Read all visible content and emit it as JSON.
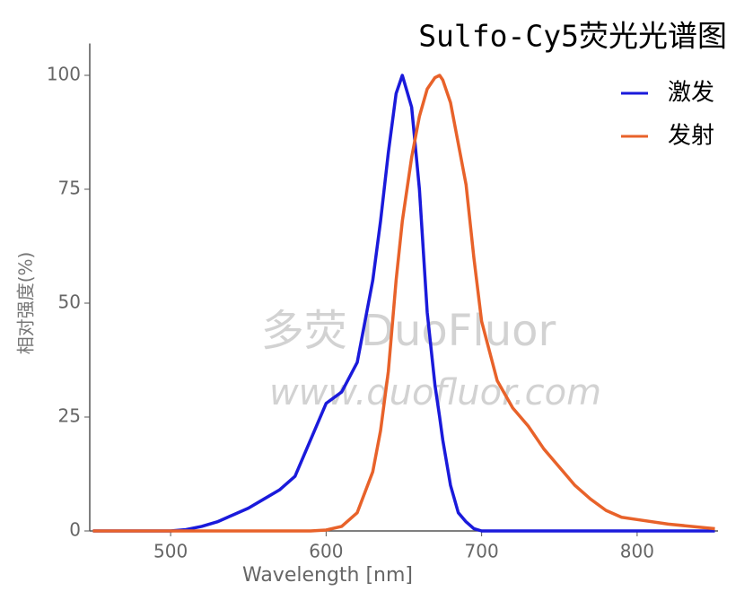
{
  "chart_data": {
    "type": "line",
    "title": "Sulfo-Cy5荧光光谱图",
    "x_label": "Wavelength [nm]",
    "y_label": "相对强度(%)",
    "watermark": [
      "多荧 DuoFluor",
      "www.duofluor.com"
    ],
    "x": [
      450,
      500,
      510,
      520,
      530,
      540,
      550,
      560,
      570,
      580,
      590,
      600,
      610,
      620,
      630,
      635,
      640,
      645,
      649,
      655,
      660,
      665,
      670,
      673,
      675,
      680,
      685,
      690,
      695,
      700,
      710,
      720,
      730,
      740,
      750,
      760,
      770,
      780,
      790,
      800,
      820,
      850
    ],
    "series": [
      {
        "name": "激发",
        "color": "#1a1adb",
        "values": [
          0,
          0,
          0.3,
          1,
          2,
          3.5,
          5,
          7,
          9,
          12,
          20,
          28,
          30.5,
          37,
          55,
          68,
          83,
          96,
          100,
          93,
          75,
          48,
          32,
          25,
          20,
          10,
          4,
          2,
          0.5,
          0,
          0,
          0,
          0,
          0,
          0,
          0,
          0,
          0,
          0,
          0,
          0,
          0
        ]
      },
      {
        "name": "发射",
        "color": "#e8622a",
        "values": [
          0,
          0,
          0,
          0,
          0,
          0,
          0,
          0,
          0,
          0,
          0,
          0.2,
          1,
          4,
          13,
          22,
          35,
          55,
          68,
          82,
          91,
          97,
          99.5,
          100,
          99,
          94,
          85,
          76,
          60,
          46,
          33,
          27,
          23,
          18,
          14,
          10,
          7,
          4.5,
          3,
          2.5,
          1.5,
          0.5
        ]
      }
    ],
    "xlim": [
      448,
      852
    ],
    "ylim": [
      0,
      107
    ],
    "xticks": [
      500,
      600,
      700,
      800
    ],
    "yticks": [
      0,
      25,
      50,
      75,
      100
    ],
    "legend": "top-right"
  }
}
